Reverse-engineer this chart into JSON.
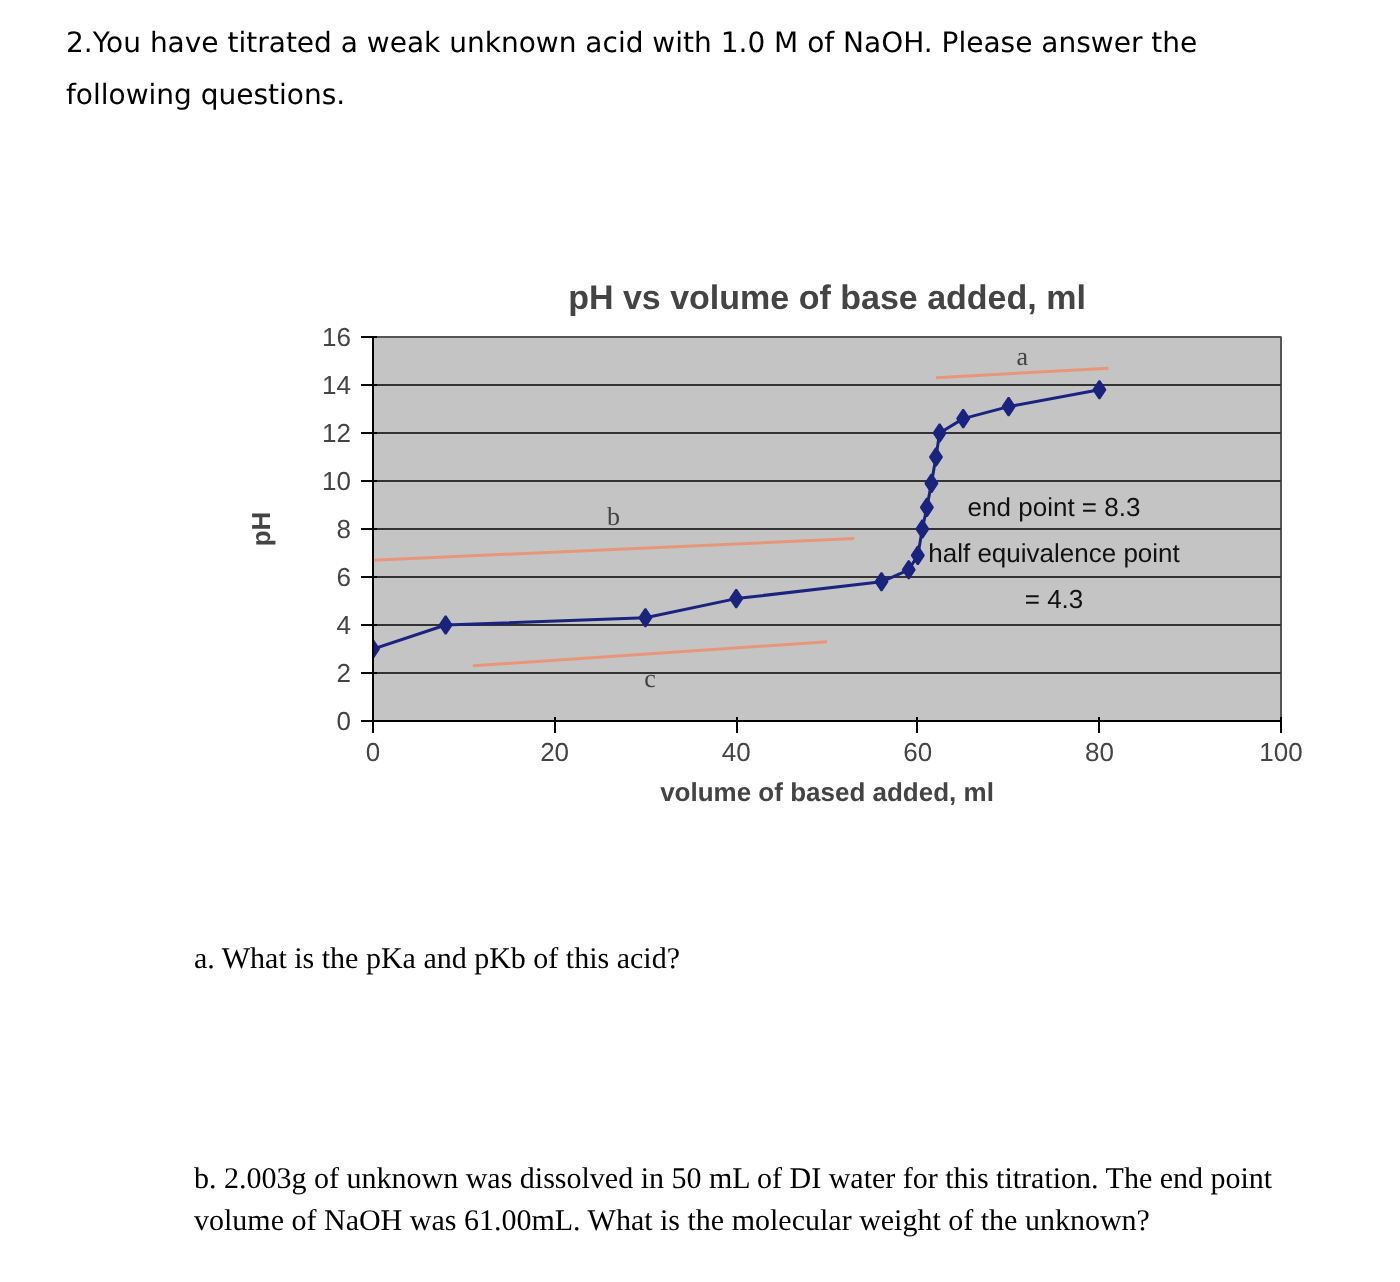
{
  "chart_data": {
    "type": "line",
    "title": "pH vs volume of base added, ml",
    "xlabel": "volume of based added, ml",
    "ylabel": "pH",
    "xlim": [
      0,
      100
    ],
    "ylim": [
      0,
      16
    ],
    "xticks": [
      0,
      20,
      40,
      60,
      80,
      100
    ],
    "yticks": [
      0,
      2,
      4,
      6,
      8,
      10,
      12,
      14,
      16
    ],
    "grid": "y",
    "marker": "diamond",
    "line_style": "solid",
    "series": [
      {
        "color": "#1a237e",
        "x": [
          0,
          8,
          30,
          40,
          56,
          59,
          60,
          60.5,
          61,
          61.5,
          62,
          62.4,
          65,
          70,
          80
        ],
        "values": [
          3.0,
          4.0,
          4.3,
          5.1,
          5.8,
          6.3,
          6.9,
          8.0,
          8.9,
          9.9,
          11.0,
          12.0,
          12.6,
          13.1,
          13.8
        ]
      },
      {
        "name": "b",
        "color": "#e8967a",
        "marker": "none",
        "x": [
          0,
          53
        ],
        "values": [
          6.7,
          7.6
        ]
      },
      {
        "name": "c",
        "color": "#e8967a",
        "marker": "none",
        "x": [
          11,
          50
        ],
        "values": [
          2.3,
          3.3
        ]
      },
      {
        "name": "a",
        "color": "#e8967a",
        "marker": "none",
        "x": [
          62,
          81
        ],
        "values": [
          14.3,
          14.7
        ]
      }
    ],
    "annotations": [
      "2.You have titrated a weak unknown acid with 1.0 M of NaOH. Please answer the following questions.",
      "a. What is the pKa and pKb of this acid?",
      "b. 2.003g of unknown was dissolved in 50 mL of DI water for this titration. The end point volume of NaOH was 61.00mL. What is the molecular weight of the unknown?",
      "end point = 8.3",
      "half equivalence point",
      "= 4.3"
    ]
  }
}
